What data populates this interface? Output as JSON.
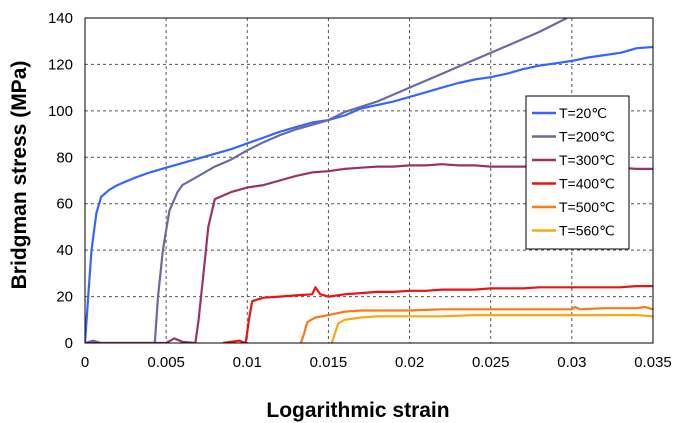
{
  "chart_data": {
    "type": "line",
    "title": "",
    "xlabel": "Logarithmic strain",
    "ylabel": "Bridgman stress (MPa)",
    "xlim": [
      0,
      0.035
    ],
    "ylim": [
      0,
      140
    ],
    "x_ticks": [
      0,
      0.005,
      0.01,
      0.015,
      0.02,
      0.025,
      0.03,
      0.035
    ],
    "x_tick_labels": [
      "0",
      "0.005",
      "0.01",
      "0.015",
      "0.02",
      "0.025",
      "0.03",
      "0.035"
    ],
    "y_ticks": [
      0,
      20,
      40,
      60,
      80,
      100,
      120,
      140
    ],
    "y_tick_labels": [
      "0",
      "20",
      "40",
      "60",
      "80",
      "100",
      "120",
      "140"
    ],
    "grid": true,
    "legend_position": "right",
    "series": [
      {
        "name": "T=20℃",
        "color": "#3366ff",
        "points": [
          [
            0,
            0
          ],
          [
            0.0002,
            20
          ],
          [
            0.0004,
            40
          ],
          [
            0.0007,
            56
          ],
          [
            0.001,
            63
          ],
          [
            0.0015,
            66
          ],
          [
            0.002,
            68
          ],
          [
            0.003,
            71
          ],
          [
            0.004,
            73.5
          ],
          [
            0.005,
            75.5
          ],
          [
            0.006,
            77.5
          ],
          [
            0.007,
            79.5
          ],
          [
            0.008,
            81.5
          ],
          [
            0.009,
            83.5
          ],
          [
            0.01,
            86
          ],
          [
            0.011,
            88.5
          ],
          [
            0.012,
            91
          ],
          [
            0.013,
            93
          ],
          [
            0.014,
            95
          ],
          [
            0.015,
            96
          ],
          [
            0.016,
            98
          ],
          [
            0.017,
            101
          ],
          [
            0.018,
            102.5
          ],
          [
            0.019,
            104
          ],
          [
            0.02,
            106
          ],
          [
            0.021,
            108
          ],
          [
            0.022,
            110
          ],
          [
            0.023,
            112
          ],
          [
            0.024,
            113.5
          ],
          [
            0.025,
            114.5
          ],
          [
            0.026,
            116
          ],
          [
            0.027,
            118
          ],
          [
            0.028,
            119.5
          ],
          [
            0.029,
            120.5
          ],
          [
            0.03,
            121.5
          ],
          [
            0.031,
            123
          ],
          [
            0.032,
            124
          ],
          [
            0.033,
            125
          ],
          [
            0.034,
            127
          ],
          [
            0.035,
            127.5
          ]
        ]
      },
      {
        "name": "T=200℃",
        "color": "#6a6aa0",
        "points": [
          [
            0,
            0
          ],
          [
            0.0005,
            1
          ],
          [
            0.001,
            0
          ],
          [
            0.002,
            0
          ],
          [
            0.0043,
            0
          ],
          [
            0.0045,
            20
          ],
          [
            0.0048,
            40
          ],
          [
            0.0052,
            57
          ],
          [
            0.0057,
            65
          ],
          [
            0.006,
            68
          ],
          [
            0.007,
            72
          ],
          [
            0.008,
            76
          ],
          [
            0.009,
            79
          ],
          [
            0.01,
            83
          ],
          [
            0.011,
            86.5
          ],
          [
            0.012,
            89.5
          ],
          [
            0.013,
            92
          ],
          [
            0.014,
            94
          ],
          [
            0.015,
            96
          ],
          [
            0.016,
            99.5
          ],
          [
            0.018,
            104
          ],
          [
            0.02,
            110
          ],
          [
            0.022,
            116
          ],
          [
            0.024,
            122
          ],
          [
            0.026,
            128
          ],
          [
            0.028,
            134
          ],
          [
            0.0297,
            140
          ]
        ]
      },
      {
        "name": "T=300℃",
        "color": "#993366",
        "points": [
          [
            0,
            0
          ],
          [
            0.005,
            0
          ],
          [
            0.0055,
            2
          ],
          [
            0.006,
            0.5
          ],
          [
            0.0068,
            0
          ],
          [
            0.007,
            10
          ],
          [
            0.0073,
            30
          ],
          [
            0.0076,
            50
          ],
          [
            0.008,
            62
          ],
          [
            0.009,
            65
          ],
          [
            0.01,
            67
          ],
          [
            0.011,
            68
          ],
          [
            0.012,
            70
          ],
          [
            0.013,
            72
          ],
          [
            0.014,
            73.5
          ],
          [
            0.015,
            74
          ],
          [
            0.016,
            75
          ],
          [
            0.017,
            75.5
          ],
          [
            0.018,
            76
          ],
          [
            0.019,
            76
          ],
          [
            0.02,
            76.5
          ],
          [
            0.021,
            76.5
          ],
          [
            0.022,
            77
          ],
          [
            0.023,
            76.5
          ],
          [
            0.024,
            76.5
          ],
          [
            0.025,
            76
          ],
          [
            0.026,
            76
          ],
          [
            0.027,
            76
          ],
          [
            0.028,
            76
          ],
          [
            0.029,
            75.5
          ],
          [
            0.03,
            75.5
          ],
          [
            0.031,
            75.5
          ],
          [
            0.032,
            75.5
          ],
          [
            0.033,
            75.5
          ],
          [
            0.034,
            75
          ],
          [
            0.035,
            75
          ]
        ]
      },
      {
        "name": "T=400℃",
        "color": "#ee1111",
        "points": [
          [
            0.0085,
            0
          ],
          [
            0.0095,
            1
          ],
          [
            0.0099,
            0
          ],
          [
            0.0101,
            10
          ],
          [
            0.0103,
            18
          ],
          [
            0.011,
            19.5
          ],
          [
            0.012,
            20
          ],
          [
            0.013,
            20.5
          ],
          [
            0.014,
            21
          ],
          [
            0.0142,
            24
          ],
          [
            0.0145,
            21
          ],
          [
            0.015,
            20
          ],
          [
            0.016,
            21
          ],
          [
            0.017,
            21.5
          ],
          [
            0.018,
            22
          ],
          [
            0.019,
            22
          ],
          [
            0.02,
            22.5
          ],
          [
            0.021,
            22.5
          ],
          [
            0.022,
            23
          ],
          [
            0.023,
            23
          ],
          [
            0.024,
            23
          ],
          [
            0.025,
            23.5
          ],
          [
            0.026,
            23.5
          ],
          [
            0.027,
            23.5
          ],
          [
            0.028,
            24
          ],
          [
            0.029,
            24
          ],
          [
            0.03,
            24
          ],
          [
            0.031,
            24
          ],
          [
            0.032,
            24
          ],
          [
            0.033,
            24
          ],
          [
            0.034,
            24.5
          ],
          [
            0.035,
            24.5
          ]
        ]
      },
      {
        "name": "T=500℃",
        "color": "#ff7711",
        "points": [
          [
            0.0133,
            0
          ],
          [
            0.0135,
            4
          ],
          [
            0.0137,
            9
          ],
          [
            0.0142,
            11
          ],
          [
            0.015,
            12
          ],
          [
            0.016,
            13.5
          ],
          [
            0.017,
            14
          ],
          [
            0.018,
            14
          ],
          [
            0.02,
            14
          ],
          [
            0.022,
            14.5
          ],
          [
            0.024,
            14.5
          ],
          [
            0.026,
            14.5
          ],
          [
            0.028,
            14.5
          ],
          [
            0.03,
            14.5
          ],
          [
            0.0302,
            15.5
          ],
          [
            0.0305,
            14.5
          ],
          [
            0.032,
            15
          ],
          [
            0.034,
            15
          ],
          [
            0.0345,
            15.5
          ],
          [
            0.035,
            14.5
          ]
        ]
      },
      {
        "name": "T=560℃",
        "color": "#ffa511",
        "points": [
          [
            0.0152,
            0
          ],
          [
            0.0154,
            4
          ],
          [
            0.0156,
            8.5
          ],
          [
            0.016,
            10
          ],
          [
            0.017,
            11
          ],
          [
            0.018,
            11.5
          ],
          [
            0.02,
            11.5
          ],
          [
            0.022,
            11.5
          ],
          [
            0.024,
            12
          ],
          [
            0.026,
            12
          ],
          [
            0.028,
            12
          ],
          [
            0.03,
            12
          ],
          [
            0.032,
            12
          ],
          [
            0.034,
            12
          ],
          [
            0.035,
            11.5
          ]
        ]
      }
    ]
  }
}
